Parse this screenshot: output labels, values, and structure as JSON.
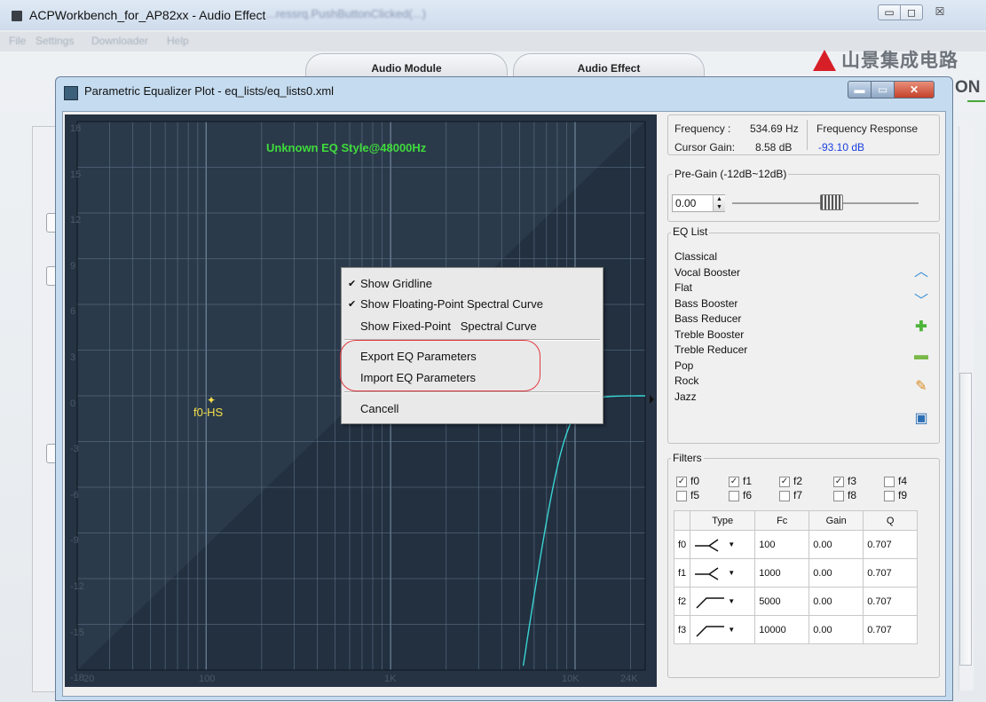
{
  "outer_window": {
    "title": "ACPWorkbench_for_AP82xx - Audio Effect",
    "blurred_title_text": "...ressrq.PushButtonClicked(...)",
    "controls": {
      "minimize": "▭",
      "maximize": "◻",
      "close": "☒"
    },
    "menu": [
      "File",
      "Settings",
      "Downloader",
      "Help"
    ],
    "tabs": [
      "Audio Module",
      "Audio Effect"
    ],
    "logo": {
      "text": "山景集成电路",
      "suffix": "ON",
      "accent": "#d71f28"
    }
  },
  "eq_window": {
    "title": "Parametric Equalizer Plot - eq_lists/eq_lists0.xml",
    "controls": {
      "minimize": "▬",
      "maximize": "▭",
      "close": "✕"
    }
  },
  "plot": {
    "title": "Unknown EQ Style@48000Hz",
    "y_ticks": [
      "18",
      "15",
      "12",
      "9",
      "6",
      "3",
      "0",
      "-3",
      "-6",
      "-9",
      "-12",
      "-15",
      "-18"
    ],
    "x_ticks": [
      "20",
      "100",
      "1K",
      "10K",
      "24K"
    ],
    "marker_label": "f0-HS",
    "marker_glyph": "✦",
    "colors": {
      "background": "#263343",
      "title": "#3fdc3b",
      "curve": "#39d4d4",
      "marker": "#f4e04a"
    }
  },
  "context_menu": {
    "items": [
      {
        "label": "Show Gridline",
        "checked": true
      },
      {
        "label": "Show Floating-Point Spectral Curve",
        "checked": true
      },
      {
        "label": "Show Fixed-Point   Spectral Curve",
        "checked": false
      },
      {
        "label": "Export EQ Parameters",
        "checked": false
      },
      {
        "label": "Import EQ Parameters",
        "checked": false
      },
      {
        "label": "Cancell",
        "checked": false
      }
    ],
    "check_glyph": "✔"
  },
  "info": {
    "frequency_label": "Frequency :",
    "frequency_value": "534.69 Hz",
    "response_label": "Frequency Response",
    "cursor_gain_label": "Cursor Gain:",
    "cursor_gain_value": "8.58 dB",
    "response_value": "-93.10 dB"
  },
  "pregain": {
    "title": "Pre-Gain (-12dB~12dB)",
    "value": "0.00",
    "slider_fraction": 0.5
  },
  "eq_list": {
    "title": "EQ List",
    "items": [
      "Classical",
      "Vocal Booster",
      "Flat",
      "Bass Booster",
      "Bass Reducer",
      "Treble Booster",
      "Treble Reducer",
      "Pop",
      "Rock",
      "Jazz"
    ],
    "icons": [
      "arrow-up-icon",
      "arrow-down-icon",
      "plus-icon",
      "minus-icon",
      "pencil-icon",
      "save-icon"
    ]
  },
  "filters": {
    "title": "Filters",
    "checks": [
      {
        "label": "f0",
        "checked": true
      },
      {
        "label": "f1",
        "checked": true
      },
      {
        "label": "f2",
        "checked": true
      },
      {
        "label": "f3",
        "checked": true
      },
      {
        "label": "f4",
        "checked": false
      },
      {
        "label": "f5",
        "checked": false
      },
      {
        "label": "f6",
        "checked": false
      },
      {
        "label": "f7",
        "checked": false
      },
      {
        "label": "f8",
        "checked": false
      },
      {
        "label": "f9",
        "checked": false
      }
    ],
    "columns": [
      "Type",
      "Fc",
      "Gain",
      "Q"
    ],
    "rows": [
      {
        "name": "f0",
        "type_icon": "high-shelf-icon",
        "fc": "100",
        "gain": "0.00",
        "q": "0.707"
      },
      {
        "name": "f1",
        "type_icon": "high-shelf-icon",
        "fc": "1000",
        "gain": "0.00",
        "q": "0.707"
      },
      {
        "name": "f2",
        "type_icon": "high-pass-icon",
        "fc": "5000",
        "gain": "0.00",
        "q": "0.707"
      },
      {
        "name": "f3",
        "type_icon": "high-pass-icon",
        "fc": "10000",
        "gain": "0.00",
        "q": "0.707"
      }
    ]
  }
}
